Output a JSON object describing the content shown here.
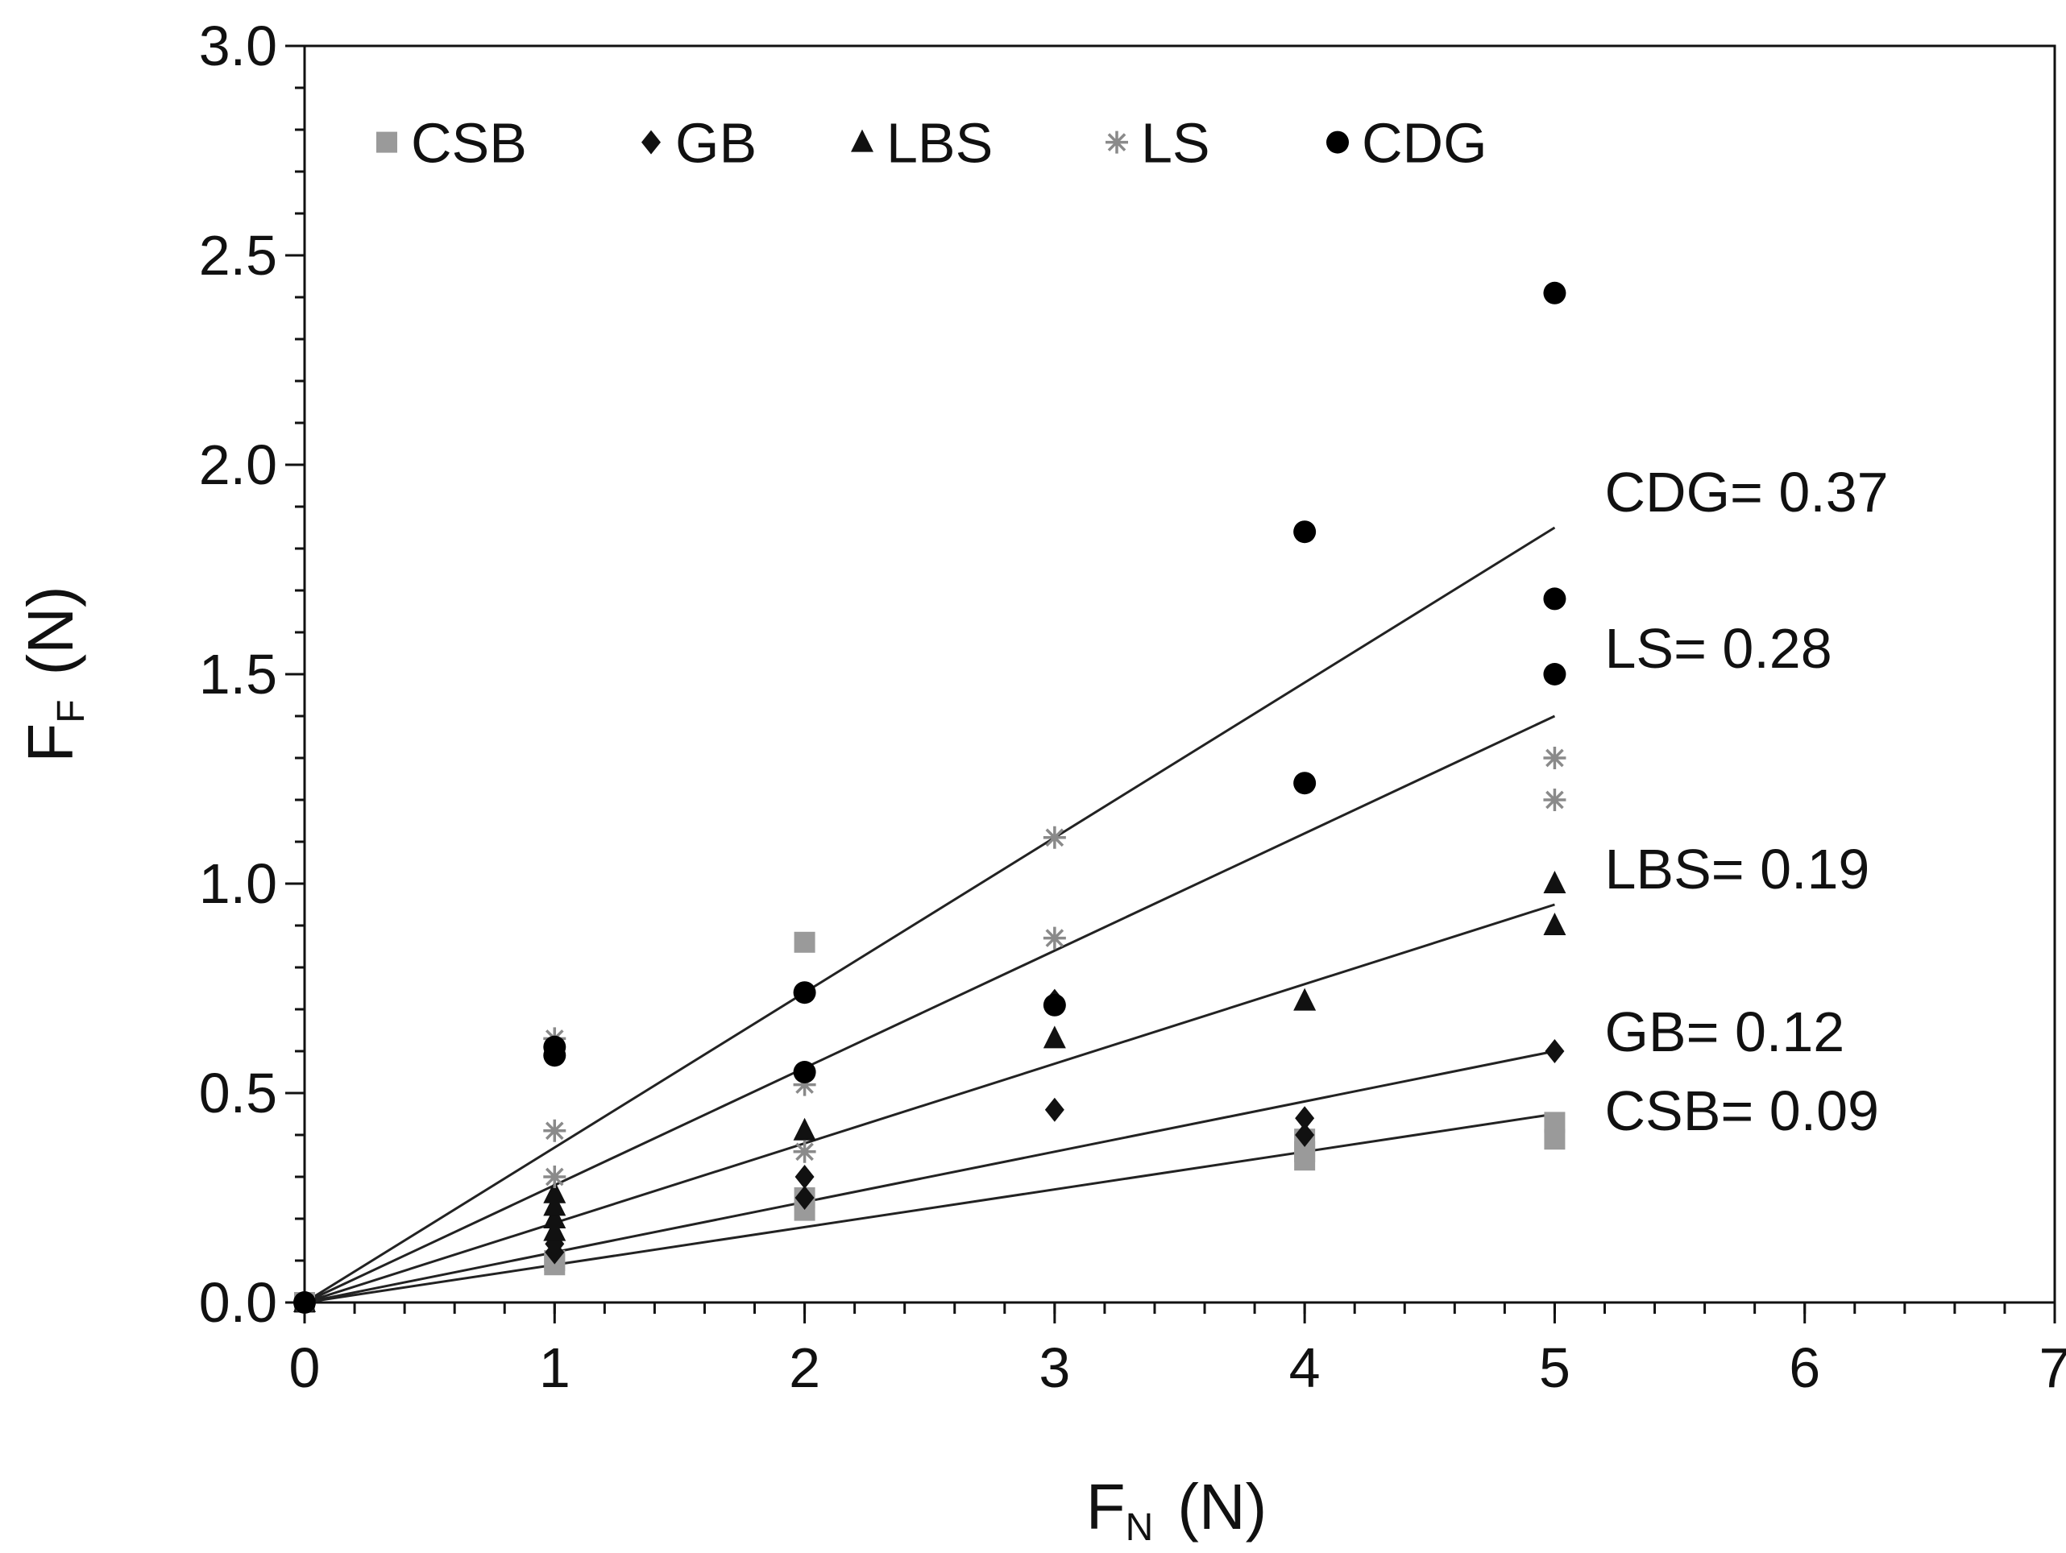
{
  "chart_data": {
    "type": "scatter",
    "title": "",
    "xlabel": {
      "main": "F",
      "sub": "N",
      "unit": "(N)"
    },
    "ylabel": {
      "main": "F",
      "sub": "F",
      "unit": "(N)"
    },
    "xlim": [
      0,
      7
    ],
    "ylim": [
      0,
      3.0
    ],
    "xticks": [
      0,
      1,
      2,
      3,
      4,
      5,
      6,
      7
    ],
    "yticks": [
      0.0,
      0.5,
      1.0,
      1.5,
      2.0,
      2.5,
      3.0
    ],
    "xtick_labels": [
      "0",
      "1",
      "2",
      "3",
      "4",
      "5",
      "6",
      "7"
    ],
    "ytick_labels": [
      "0.0",
      "0.5",
      "1.0",
      "1.5",
      "2.0",
      "2.5",
      "3.0"
    ],
    "grid": false,
    "legend_position": "top",
    "series": [
      {
        "name": "CSB",
        "marker": "square",
        "color": "#9a9a9a",
        "slope": 0.09,
        "fit_label": "CSB= 0.09",
        "points": [
          [
            0,
            0
          ],
          [
            1,
            0.09
          ],
          [
            1,
            0.1
          ],
          [
            2,
            0.22
          ],
          [
            2,
            0.25
          ],
          [
            2,
            0.86
          ],
          [
            4,
            0.34
          ],
          [
            4,
            0.36
          ],
          [
            4,
            0.39
          ],
          [
            5,
            0.39
          ],
          [
            5,
            0.43
          ]
        ]
      },
      {
        "name": "GB",
        "marker": "diamond",
        "color": "#111111",
        "slope": 0.12,
        "fit_label": "GB= 0.12",
        "points": [
          [
            0,
            0
          ],
          [
            1,
            0.12
          ],
          [
            1,
            0.14
          ],
          [
            2,
            0.25
          ],
          [
            2,
            0.3
          ],
          [
            3,
            0.46
          ],
          [
            3,
            0.72
          ],
          [
            4,
            0.4
          ],
          [
            4,
            0.44
          ],
          [
            5,
            0.6
          ]
        ]
      },
      {
        "name": "LBS",
        "marker": "triangle",
        "color": "#111111",
        "slope": 0.19,
        "fit_label": "LBS= 0.19",
        "points": [
          [
            0,
            0
          ],
          [
            1,
            0.17
          ],
          [
            1,
            0.2
          ],
          [
            1,
            0.23
          ],
          [
            1,
            0.26
          ],
          [
            2,
            0.41
          ],
          [
            3,
            0.63
          ],
          [
            4,
            0.72
          ],
          [
            5,
            0.9
          ],
          [
            5,
            1.0
          ]
        ]
      },
      {
        "name": "LS",
        "marker": "star",
        "color": "#8a8a8a",
        "slope": 0.28,
        "fit_label": "LS= 0.28",
        "points": [
          [
            0,
            0
          ],
          [
            1,
            0.3
          ],
          [
            1,
            0.41
          ],
          [
            1,
            0.63
          ],
          [
            2,
            0.36
          ],
          [
            2,
            0.52
          ],
          [
            3,
            0.87
          ],
          [
            3,
            1.11
          ],
          [
            5,
            1.2
          ],
          [
            5,
            1.3
          ]
        ]
      },
      {
        "name": "CDG",
        "marker": "circle",
        "color": "#000000",
        "slope": 0.37,
        "fit_label": "CDG= 0.37",
        "points": [
          [
            0,
            0
          ],
          [
            1,
            0.59
          ],
          [
            1,
            0.61
          ],
          [
            2,
            0.55
          ],
          [
            2,
            0.74
          ],
          [
            3,
            0.71
          ],
          [
            4,
            1.24
          ],
          [
            4,
            1.84
          ],
          [
            5,
            1.5
          ],
          [
            5,
            1.68
          ],
          [
            5,
            2.41
          ]
        ]
      }
    ]
  }
}
